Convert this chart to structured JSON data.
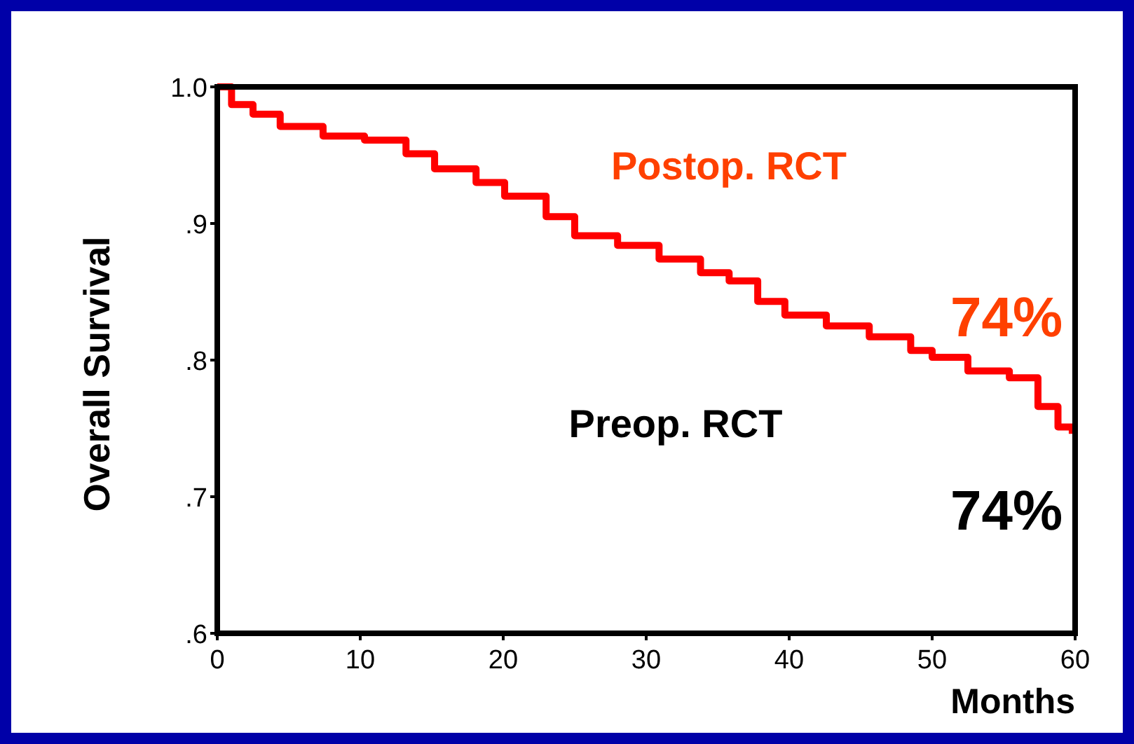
{
  "chart_data": {
    "type": "step",
    "ylabel": "Overall Survival",
    "xlabel": "Months",
    "xlim": [
      0,
      60
    ],
    "xticks": [
      0,
      10,
      20,
      30,
      40,
      50,
      60
    ],
    "ylim": [
      0.6,
      1.0
    ],
    "yticks": [
      {
        "value": 0.6,
        "label": ".6"
      },
      {
        "value": 0.7,
        "label": ".7"
      },
      {
        "value": 0.8,
        "label": ".8"
      },
      {
        "value": 0.9,
        "label": ".9"
      },
      {
        "value": 1.0,
        "label": "1.0"
      }
    ],
    "grid": false,
    "series": [
      {
        "name": "Postop. RCT",
        "color": "#ff0000",
        "x": [
          0,
          1,
          2.5,
          4.4,
          7.4,
          10.3,
          13.2,
          15.2,
          18.1,
          20.1,
          23,
          25,
          28,
          30.9,
          33.8,
          35.8,
          37.8,
          39.7,
          42.6,
          45.6,
          48.5,
          50,
          52.5,
          55.4,
          57.4,
          58.8,
          59.8
        ],
        "values": [
          1.0,
          0.987,
          0.98,
          0.971,
          0.964,
          0.961,
          0.951,
          0.94,
          0.93,
          0.92,
          0.905,
          0.891,
          0.884,
          0.874,
          0.864,
          0.858,
          0.843,
          0.833,
          0.825,
          0.817,
          0.807,
          0.802,
          0.792,
          0.787,
          0.766,
          0.751,
          0.746
        ]
      }
    ],
    "annotations": [
      "74%",
      "Preop. RCT",
      "74%"
    ]
  }
}
